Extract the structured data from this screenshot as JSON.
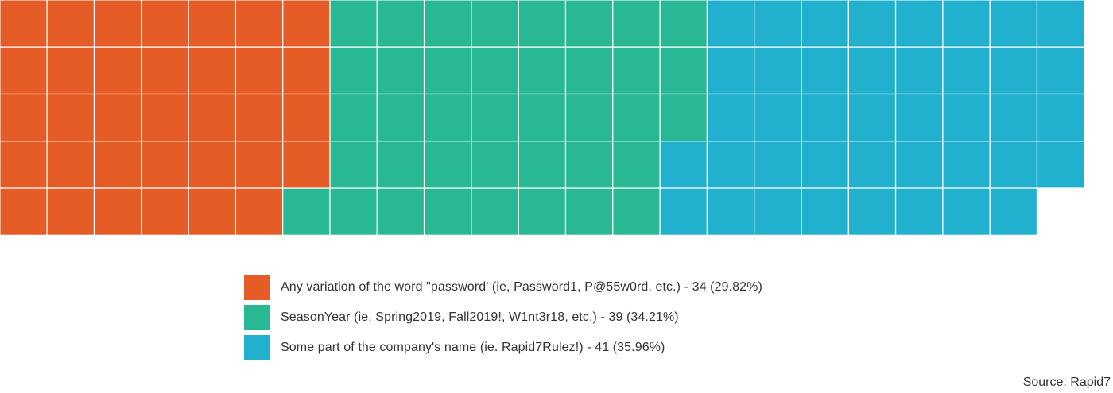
{
  "chart_data": {
    "type": "waffle",
    "unit_count_total": 114,
    "series": [
      {
        "name": "Any variation of the word \"password' (ie, Password1, P@55w0rd, etc.) - 34 (29.82%)",
        "value": 34,
        "percent": 29.82,
        "color": "#e65c27"
      },
      {
        "name": "SeasonYear (ie. Spring2019, Fall2019!, W1nt3r18, etc.) - 39 (34.21%)",
        "value": 39,
        "percent": 34.21,
        "color": "#28b893"
      },
      {
        "name": "Some part of the company's name (ie. Rapid7Rulez!) - 41 (35.96%)",
        "value": 41,
        "percent": 35.96,
        "color": "#21b0ce"
      }
    ],
    "fill_order": "column-major, top to bottom, left to right",
    "legend_position": "bottom-center"
  },
  "source": "Source: Rapid7"
}
